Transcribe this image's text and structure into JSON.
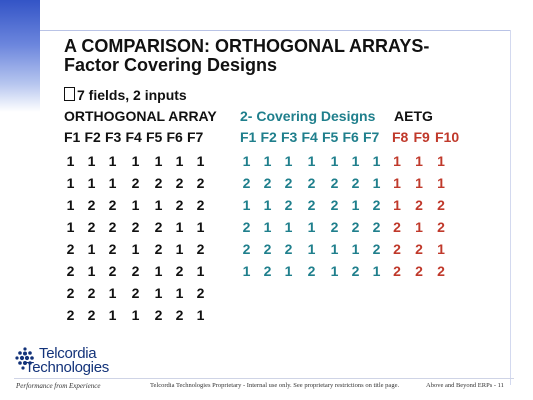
{
  "slide": {
    "title_line1": "A COMPARISON: ORTHOGONAL ARRAYS-",
    "title_line2": "Factor Covering Designs",
    "bullet_text": "7 fields, 2 inputs"
  },
  "groups": {
    "orthogonal": {
      "title": "ORTHOGONAL ARRAY",
      "headers": [
        "F1",
        "F2",
        "F3",
        "F4",
        "F5",
        "F6",
        "F7"
      ],
      "rows": [
        [
          "1",
          "1",
          "1",
          "1",
          "1",
          "1",
          "1"
        ],
        [
          "1",
          "1",
          "1",
          "2",
          "2",
          "2",
          "2"
        ],
        [
          "1",
          "2",
          "2",
          "1",
          "1",
          "2",
          "2"
        ],
        [
          "1",
          "2",
          "2",
          "2",
          "2",
          "1",
          "1"
        ],
        [
          "2",
          "1",
          "2",
          "1",
          "2",
          "1",
          "2"
        ],
        [
          "2",
          "1",
          "2",
          "2",
          "1",
          "2",
          "1"
        ],
        [
          "2",
          "2",
          "1",
          "2",
          "1",
          "1",
          "2"
        ],
        [
          "2",
          "2",
          "1",
          "1",
          "2",
          "2",
          "1"
        ]
      ]
    },
    "covering": {
      "title": "2- Covering Designs",
      "headers": [
        "F1",
        "F2",
        "F3",
        "F4",
        "F5",
        "F6",
        "F7"
      ],
      "rows": [
        [
          "1",
          "1",
          "1",
          "1",
          "1",
          "1",
          "1"
        ],
        [
          "2",
          "2",
          "2",
          "2",
          "2",
          "2",
          "1"
        ],
        [
          "1",
          "1",
          "2",
          "2",
          "2",
          "1",
          "2"
        ],
        [
          "2",
          "1",
          "1",
          "1",
          "2",
          "2",
          "2"
        ],
        [
          "2",
          "2",
          "2",
          "1",
          "1",
          "1",
          "2"
        ],
        [
          "1",
          "2",
          "1",
          "2",
          "1",
          "2",
          "1"
        ]
      ]
    },
    "aetg": {
      "title": "AETG",
      "headers": [
        "F8",
        "F9",
        "F10"
      ],
      "rows": [
        [
          "1",
          "1",
          "1"
        ],
        [
          "1",
          "1",
          "1"
        ],
        [
          "1",
          "2",
          "2"
        ],
        [
          "2",
          "1",
          "2"
        ],
        [
          "2",
          "2",
          "1"
        ],
        [
          "2",
          "2",
          "2"
        ]
      ]
    }
  },
  "footer": {
    "logo_line1": "Telcordia",
    "logo_line2": "Technologies",
    "tagline": "Performance from Experience",
    "proprietary": "Telcordia Technologies Proprietary - Internal use only.  See proprietary restrictions on title page.",
    "page_label": "Above and Beyond ERPs - 11"
  },
  "colors": {
    "black": "#111111",
    "teal": "#1f7f8c",
    "red": "#c0392b",
    "brand_blue": "#13337a"
  },
  "icons": {
    "bullet": "hollow-square-bullet",
    "logo_mark": "telcordia-dot-grid"
  }
}
